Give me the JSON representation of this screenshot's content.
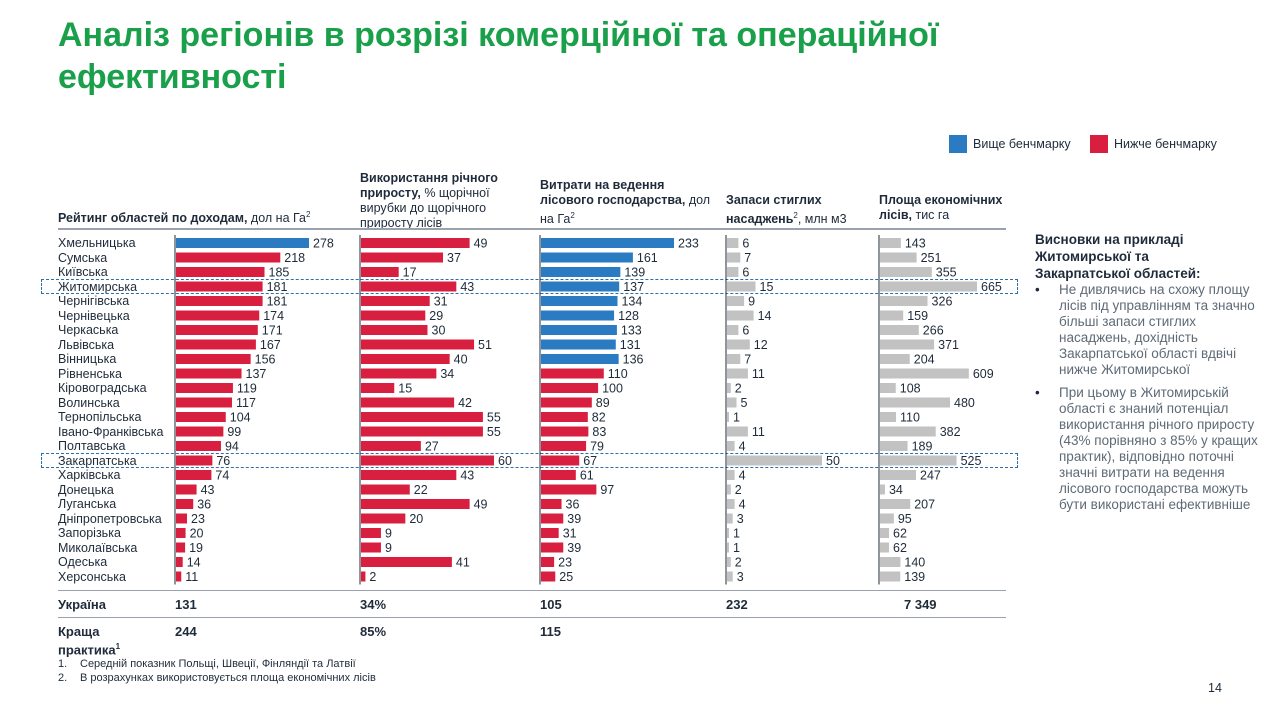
{
  "title": "Аналіз регіонів в розрізі комерційної та операційної ефективності",
  "legend": {
    "above": "Вище бенчмарку",
    "below": "Нижче бенчмарку"
  },
  "colors": {
    "above": "#2a7bc1",
    "below": "#d81f3f",
    "neutral": "#c2c2c2",
    "title": "#1aa04a"
  },
  "columns": [
    {
      "bold": "Рейтинг областей по доходам,",
      "normal": " дол на Га",
      "sup": "2"
    },
    {
      "bold": "Використання річного приросту,",
      "normal": " % щорічної вирубки до щорічного приросту лісів",
      "sup": ""
    },
    {
      "bold": "Витрати на ведення лісового господарства,",
      "normal": " дол на Га",
      "sup": "2"
    },
    {
      "bold": "Запаси стиглих насаджень",
      "normal": ", млн м3",
      "sup": "2"
    },
    {
      "bold": "Площа економічних лісів,",
      "normal": " тис га",
      "sup": ""
    }
  ],
  "chart_data": {
    "type": "bar",
    "orientation": "horizontal",
    "categories": [
      "Хмельницька",
      "Сумська",
      "Київська",
      "Житомирська",
      "Чернігівська",
      "Чернівецька",
      "Черкаська",
      "Львівська",
      "Вінницька",
      "Рівненська",
      "Кіровоградська",
      "Волинська",
      "Тернопільська",
      "Івано-Франківська",
      "Полтавська",
      "Закарпатська",
      "Харківська",
      "Донецька",
      "Луганська",
      "Дніпропетровська",
      "Запорізька",
      "Миколаївська",
      "Одеська",
      "Херсонська"
    ],
    "highlighted": [
      "Житомирська",
      "Закарпатська"
    ],
    "series": [
      {
        "values": [
          278,
          218,
          185,
          181,
          181,
          174,
          171,
          167,
          156,
          137,
          119,
          117,
          104,
          99,
          94,
          76,
          74,
          43,
          36,
          23,
          20,
          19,
          14,
          11
        ],
        "status": [
          "above",
          "below",
          "below",
          "below",
          "below",
          "below",
          "below",
          "below",
          "below",
          "below",
          "below",
          "below",
          "below",
          "below",
          "below",
          "below",
          "below",
          "below",
          "below",
          "below",
          "below",
          "below",
          "below",
          "below"
        ]
      },
      {
        "values": [
          49,
          37,
          17,
          43,
          31,
          29,
          30,
          51,
          40,
          34,
          15,
          42,
          55,
          55,
          27,
          60,
          43,
          22,
          49,
          20,
          9,
          9,
          41,
          2
        ],
        "status": [
          "below",
          "below",
          "below",
          "below",
          "below",
          "below",
          "below",
          "below",
          "below",
          "below",
          "below",
          "below",
          "below",
          "below",
          "below",
          "below",
          "below",
          "below",
          "below",
          "below",
          "below",
          "below",
          "below",
          "below"
        ]
      },
      {
        "values": [
          233,
          161,
          139,
          137,
          134,
          128,
          133,
          131,
          136,
          110,
          100,
          89,
          82,
          83,
          79,
          67,
          61,
          97,
          36,
          39,
          31,
          39,
          23,
          25
        ],
        "status": [
          "above",
          "above",
          "above",
          "above",
          "above",
          "above",
          "above",
          "above",
          "above",
          "below",
          "below",
          "below",
          "below",
          "below",
          "below",
          "below",
          "below",
          "below",
          "below",
          "below",
          "below",
          "below",
          "below",
          "below"
        ]
      },
      {
        "values": [
          6,
          7,
          6,
          15,
          9,
          14,
          6,
          12,
          7,
          11,
          2,
          5,
          1,
          11,
          4,
          50,
          4,
          2,
          4,
          3,
          1,
          1,
          2,
          3
        ],
        "status": [
          "neutral",
          "neutral",
          "neutral",
          "neutral",
          "neutral",
          "neutral",
          "neutral",
          "neutral",
          "neutral",
          "neutral",
          "neutral",
          "neutral",
          "neutral",
          "neutral",
          "neutral",
          "neutral",
          "neutral",
          "neutral",
          "neutral",
          "neutral",
          "neutral",
          "neutral",
          "neutral",
          "neutral"
        ]
      },
      {
        "values": [
          143,
          251,
          355,
          665,
          326,
          159,
          266,
          371,
          204,
          609,
          108,
          480,
          110,
          382,
          189,
          525,
          247,
          34,
          207,
          95,
          62,
          62,
          140,
          139
        ],
        "status": [
          "neutral",
          "neutral",
          "neutral",
          "neutral",
          "neutral",
          "neutral",
          "neutral",
          "neutral",
          "neutral",
          "neutral",
          "neutral",
          "neutral",
          "neutral",
          "neutral",
          "neutral",
          "neutral",
          "neutral",
          "neutral",
          "neutral",
          "neutral",
          "neutral",
          "neutral",
          "neutral",
          "neutral"
        ]
      }
    ]
  },
  "summary": {
    "ukraine": {
      "label": "Україна",
      "values": [
        "131",
        "34%",
        "105",
        "232",
        "7 349"
      ]
    },
    "best": {
      "label": "Краща практика",
      "sup": "1",
      "values": [
        "244",
        "85%",
        "115"
      ]
    }
  },
  "sidebar": {
    "heading": "Висновки на прикладі Житомирської та Закарпатської областей:",
    "bullets": [
      "Не дивлячись на схожу площу лісів під управлінням та значно більші запаси стиглих насаджень, дохідність Закарпатської області вдвічі нижче Житомирської",
      "При цьому в Житомирській області є знаний потенціал використання річного приросту (43% порівняно з 85% у кращих практик), відповідно поточні значні витрати на ведення лісового господарства можуть бути використані ефективніше"
    ]
  },
  "footnotes": [
    {
      "num": "1.",
      "text": "Середній показник Польщі, Швеції, Фінляндії та Латвії"
    },
    {
      "num": "2.",
      "text": "В розрахунках використовується площа економічних лісів"
    }
  ],
  "page_number": "14"
}
